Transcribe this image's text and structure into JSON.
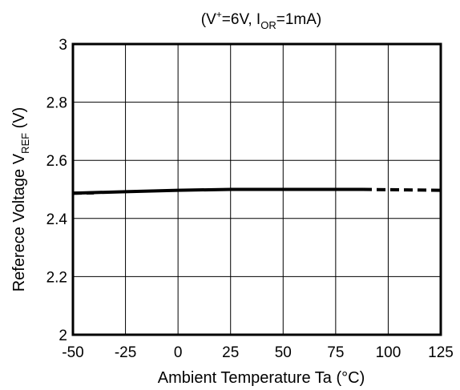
{
  "chart_data": {
    "type": "line",
    "title_parts": {
      "open": "(V",
      "sup": "+",
      "mid": "=6V, I",
      "sub": "OR",
      "close": "=1mA)"
    },
    "xlabel": "Ambient Temperature  Ta  (°C)",
    "ylabel_parts": {
      "main": "Referece Voltage  V",
      "sub": "REF",
      "unit": " (V)"
    },
    "xlim": [
      -50,
      125
    ],
    "ylim": [
      2,
      3
    ],
    "x_ticks": [
      -50,
      -25,
      0,
      25,
      50,
      75,
      100,
      125
    ],
    "x_tick_labels": [
      "-50",
      "-25",
      "0",
      "25",
      "50",
      "75",
      "100",
      "125"
    ],
    "y_ticks": [
      2,
      2.2,
      2.4,
      2.6,
      2.8,
      3
    ],
    "y_tick_labels": [
      "2",
      "2.2",
      "2.4",
      "2.6",
      "2.8",
      "3"
    ],
    "grid": true,
    "series": [
      {
        "style": "solid",
        "x": [
          -50,
          -25,
          0,
          25,
          50,
          75,
          88
        ],
        "y": [
          2.487,
          2.492,
          2.497,
          2.5,
          2.5,
          2.5,
          2.5
        ]
      },
      {
        "style": "dashed",
        "x": [
          -50,
          -40
        ],
        "y": [
          2.487,
          2.488
        ]
      },
      {
        "style": "dashed",
        "x": [
          88,
          125
        ],
        "y": [
          2.5,
          2.497
        ]
      }
    ]
  }
}
